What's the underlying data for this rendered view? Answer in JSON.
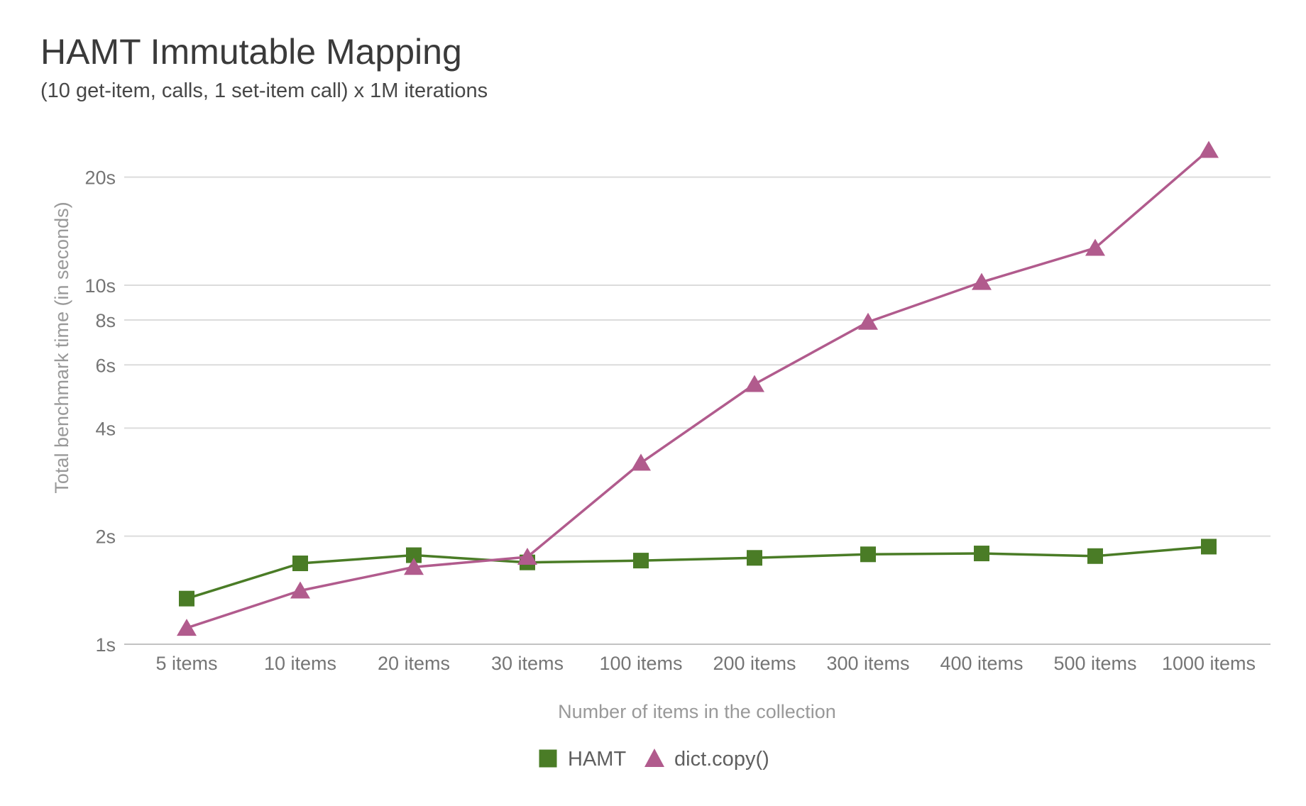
{
  "chart_data": {
    "type": "line",
    "title": "HAMT Immutable Mapping",
    "subtitle": "(10 get-item, calls, 1 set-item call) x 1M iterations",
    "xlabel": "Number of items in the collection",
    "ylabel": "Total benchmark time (in seconds)",
    "x_axis_type": "categorical",
    "categories": [
      "5 items",
      "10 items",
      "20 items",
      "30 items",
      "100 items",
      "200 items",
      "300 items",
      "400 items",
      "500 items",
      "1000 items"
    ],
    "y_scale": "log",
    "ylim": [
      1,
      28
    ],
    "y_ticks": [
      {
        "value": 1,
        "label": "1s"
      },
      {
        "value": 2,
        "label": "2s"
      },
      {
        "value": 4,
        "label": "4s"
      },
      {
        "value": 6,
        "label": "6s"
      },
      {
        "value": 8,
        "label": "8s"
      },
      {
        "value": 10,
        "label": "10s"
      },
      {
        "value": 20,
        "label": "20s"
      }
    ],
    "grid": true,
    "legend_position": "bottom",
    "series": [
      {
        "name": "HAMT",
        "marker": "square",
        "color": "#4a7c26",
        "values": [
          1.34,
          1.68,
          1.77,
          1.69,
          1.71,
          1.74,
          1.78,
          1.79,
          1.76,
          1.87
        ]
      },
      {
        "name": "dict.copy()",
        "marker": "triangle",
        "color": "#b15b8d",
        "values": [
          1.11,
          1.41,
          1.64,
          1.75,
          3.2,
          5.3,
          7.9,
          10.2,
          12.7,
          23.8
        ]
      }
    ]
  }
}
